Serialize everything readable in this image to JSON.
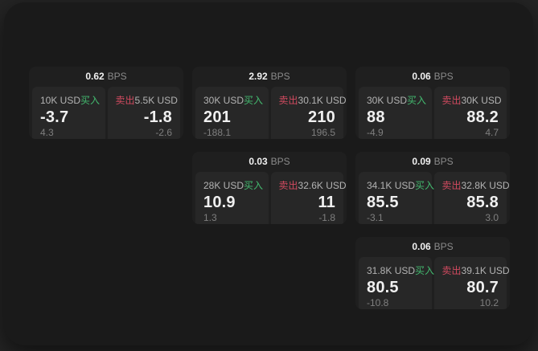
{
  "labels": {
    "bps": "BPS",
    "buy": "买入",
    "sell": "卖出"
  },
  "colors": {
    "page_bg": "#242424",
    "window_bg": "#1a1a1a",
    "card_bg": "#1f1f1f",
    "panel_bg": "#272727",
    "buy": "#43b96f",
    "sell": "#d04a5f",
    "value_text": "#f0f0f0",
    "size_text": "#b3b3b3",
    "sub_text": "#7f7f7f",
    "muted_text": "#8b8b8b"
  },
  "cards": [
    {
      "row": 1,
      "col": 1,
      "bps": "0.62",
      "buy": {
        "size": "10K USD",
        "value": "-3.7",
        "sub": "4.3"
      },
      "sell": {
        "size": "5.5K USD",
        "value": "-1.8",
        "sub": "-2.6"
      }
    },
    {
      "row": 1,
      "col": 2,
      "bps": "2.92",
      "buy": {
        "size": "30K USD",
        "value": "201",
        "sub": "-188.1"
      },
      "sell": {
        "size": "30.1K USD",
        "value": "210",
        "sub": "196.5"
      }
    },
    {
      "row": 1,
      "col": 3,
      "bps": "0.06",
      "buy": {
        "size": "30K USD",
        "value": "88",
        "sub": "-4.9"
      },
      "sell": {
        "size": "30K USD",
        "value": "88.2",
        "sub": "4.7"
      }
    },
    {
      "row": 2,
      "col": 2,
      "bps": "0.03",
      "buy": {
        "size": "28K USD",
        "value": "10.9",
        "sub": "1.3"
      },
      "sell": {
        "size": "32.6K USD",
        "value": "11",
        "sub": "-1.8"
      }
    },
    {
      "row": 2,
      "col": 3,
      "bps": "0.09",
      "buy": {
        "size": "34.1K USD",
        "value": "85.5",
        "sub": "-3.1"
      },
      "sell": {
        "size": "32.8K USD",
        "value": "85.8",
        "sub": "3.0"
      }
    },
    {
      "row": 3,
      "col": 3,
      "bps": "0.06",
      "buy": {
        "size": "31.8K USD",
        "value": "80.5",
        "sub": "-10.8"
      },
      "sell": {
        "size": "39.1K USD",
        "value": "80.7",
        "sub": "10.2"
      }
    }
  ]
}
